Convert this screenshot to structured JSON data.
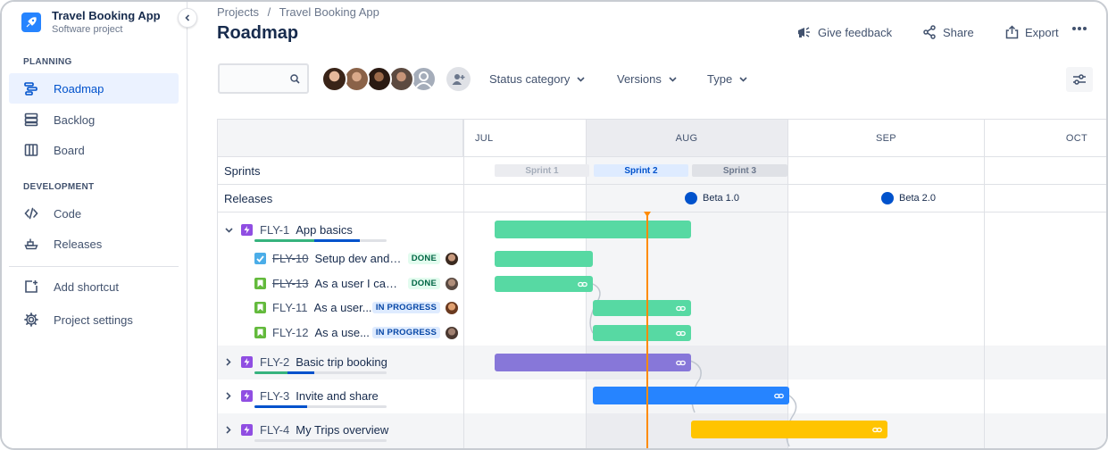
{
  "project": {
    "name": "Travel Booking App",
    "type": "Software project"
  },
  "sidebar": {
    "planning_label": "PLANNING",
    "development_label": "DEVELOPMENT",
    "planning_items": [
      {
        "label": "Roadmap",
        "icon": "roadmap-icon",
        "active": true
      },
      {
        "label": "Backlog",
        "icon": "backlog-icon"
      },
      {
        "label": "Board",
        "icon": "board-icon"
      }
    ],
    "development_items": [
      {
        "label": "Code",
        "icon": "code-icon"
      },
      {
        "label": "Releases",
        "icon": "releases-icon"
      }
    ],
    "bottom_items": [
      {
        "label": "Add shortcut",
        "icon": "add-shortcut-icon"
      },
      {
        "label": "Project settings",
        "icon": "gear-icon"
      }
    ]
  },
  "header": {
    "breadcrumb": [
      "Projects",
      "/",
      "Travel Booking App"
    ],
    "title": "Roadmap",
    "feedback_label": "Give feedback",
    "share_label": "Share",
    "export_label": "Export"
  },
  "toolbar": {
    "search_placeholder": "",
    "filters": [
      "Status category",
      "Versions",
      "Type"
    ]
  },
  "timeline": {
    "months": [
      "JUL",
      "AUG",
      "SEP",
      "OCT"
    ],
    "sprints_label": "Sprints",
    "releases_label": "Releases",
    "sprints": [
      "Sprint 1",
      "Sprint 2",
      "Sprint 3"
    ],
    "releases": [
      "Beta 1.0",
      "Beta 2.0"
    ]
  },
  "epics": [
    {
      "key": "FLY-1",
      "title": "App basics",
      "expanded": true,
      "color": "#57D9A3",
      "progress_done": 0.45,
      "progress_inprogress": 0.35
    },
    {
      "key": "FLY-2",
      "title": "Basic trip booking",
      "expanded": false,
      "color": "#8777D9",
      "progress_done": 0.25,
      "progress_inprogress": 0.2
    },
    {
      "key": "FLY-3",
      "title": "Invite and share",
      "expanded": false,
      "color": "#2684FF",
      "progress_done": 0,
      "progress_inprogress": 0.4
    },
    {
      "key": "FLY-4",
      "title": "My Trips overview",
      "expanded": false,
      "color": "#FFC400",
      "progress_done": 0,
      "progress_inprogress": 0
    }
  ],
  "children": [
    {
      "key": "FLY-10",
      "title": "Setup dev and ...",
      "status": "DONE",
      "type": "task",
      "done": true
    },
    {
      "key": "FLY-13",
      "title": "As a user I can ...",
      "status": "DONE",
      "type": "story",
      "done": true
    },
    {
      "key": "FLY-11",
      "title": "As a user...",
      "status": "IN PROGRESS",
      "type": "story",
      "done": false
    },
    {
      "key": "FLY-12",
      "title": "As a use...",
      "status": "IN PROGRESS",
      "type": "story",
      "done": false
    }
  ],
  "colors": {
    "accent": "#0052CC",
    "today": "#FF8B00",
    "child_bar": "#57D9A3"
  }
}
